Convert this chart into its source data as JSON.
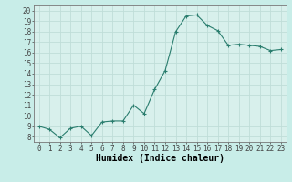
{
  "x": [
    0,
    1,
    2,
    3,
    4,
    5,
    6,
    7,
    8,
    9,
    10,
    11,
    12,
    13,
    14,
    15,
    16,
    17,
    18,
    19,
    20,
    21,
    22,
    23
  ],
  "y": [
    9.0,
    8.7,
    7.9,
    8.8,
    9.0,
    8.1,
    9.4,
    9.5,
    9.5,
    11.0,
    10.2,
    12.5,
    14.3,
    18.0,
    19.5,
    19.6,
    18.6,
    18.1,
    16.7,
    16.8,
    16.7,
    16.6,
    16.2,
    16.3
  ],
  "line_color": "#2a7d6e",
  "marker": "+",
  "marker_size": 3,
  "marker_linewidth": 0.8,
  "bg_color": "#c8ede8",
  "plot_bg_color": "#d8f0ec",
  "grid_color": "#c0ddd8",
  "xlabel": "Humidex (Indice chaleur)",
  "xlim": [
    -0.5,
    23.5
  ],
  "ylim": [
    7.5,
    20.5
  ],
  "yticks": [
    8,
    9,
    10,
    11,
    12,
    13,
    14,
    15,
    16,
    17,
    18,
    19,
    20
  ],
  "xticks": [
    0,
    1,
    2,
    3,
    4,
    5,
    6,
    7,
    8,
    9,
    10,
    11,
    12,
    13,
    14,
    15,
    16,
    17,
    18,
    19,
    20,
    21,
    22,
    23
  ],
  "tick_fontsize": 5.5,
  "xlabel_fontsize": 7,
  "line_width": 0.8,
  "tick_color": "#444444",
  "spine_color": "#777777",
  "bottom_bar_color": "#8ab8b0"
}
